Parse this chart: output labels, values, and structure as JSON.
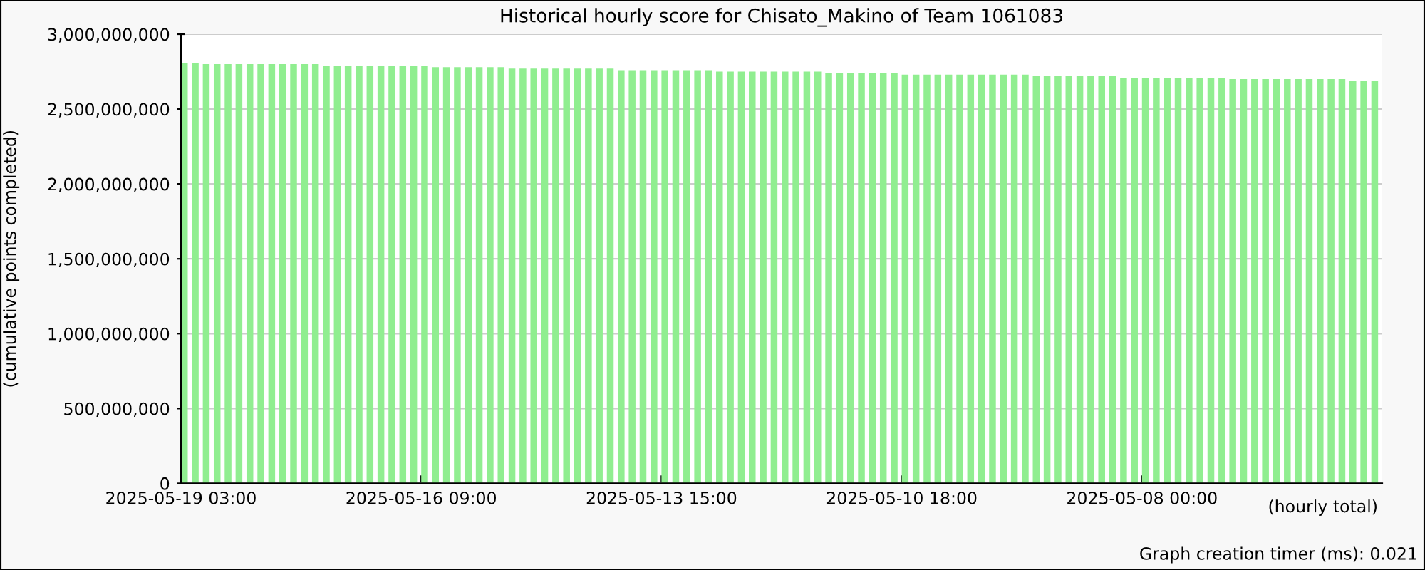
{
  "chart_data": {
    "type": "bar",
    "title": "Historical hourly score for Chisato_Makino of Team 1061083",
    "ylabel": "(cumulative points completed)",
    "annotations": [
      "(hourly total)",
      "Graph creation timer (ms): 0.021"
    ],
    "categories": [
      "2025-05-19 03:00",
      null,
      null,
      null,
      null,
      null,
      null,
      null,
      null,
      null,
      null,
      null,
      null,
      null,
      null,
      null,
      null,
      null,
      null,
      null,
      null,
      null,
      "2025-05-16 09:00",
      null,
      null,
      null,
      null,
      null,
      null,
      null,
      null,
      null,
      null,
      null,
      null,
      null,
      null,
      null,
      null,
      null,
      null,
      null,
      null,
      null,
      "2025-05-13 15:00",
      null,
      null,
      null,
      null,
      null,
      null,
      null,
      null,
      null,
      null,
      null,
      null,
      null,
      null,
      null,
      null,
      null,
      null,
      null,
      null,
      null,
      "2025-05-10 18:00",
      null,
      null,
      null,
      null,
      null,
      null,
      null,
      null,
      null,
      null,
      null,
      null,
      null,
      null,
      null,
      null,
      null,
      null,
      null,
      null,
      null,
      "2025-05-08 00:00",
      null,
      null,
      null,
      null,
      null,
      null,
      null,
      null,
      null,
      null,
      null,
      null,
      null,
      null,
      null,
      null,
      null,
      null,
      null,
      null,
      null
    ],
    "values": [
      2810000000,
      2810000000,
      2800000000,
      2800000000,
      2800000000,
      2800000000,
      2800000000,
      2800000000,
      2800000000,
      2800000000,
      2800000000,
      2800000000,
      2800000000,
      2790000000,
      2790000000,
      2790000000,
      2790000000,
      2790000000,
      2790000000,
      2790000000,
      2790000000,
      2790000000,
      2790000000,
      2780000000,
      2780000000,
      2780000000,
      2780000000,
      2780000000,
      2780000000,
      2780000000,
      2770000000,
      2770000000,
      2770000000,
      2770000000,
      2770000000,
      2770000000,
      2770000000,
      2770000000,
      2770000000,
      2770000000,
      2760000000,
      2760000000,
      2760000000,
      2760000000,
      2760000000,
      2760000000,
      2760000000,
      2760000000,
      2760000000,
      2750000000,
      2750000000,
      2750000000,
      2750000000,
      2750000000,
      2750000000,
      2750000000,
      2750000000,
      2750000000,
      2750000000,
      2740000000,
      2740000000,
      2740000000,
      2740000000,
      2740000000,
      2740000000,
      2740000000,
      2730000000,
      2730000000,
      2730000000,
      2730000000,
      2730000000,
      2730000000,
      2730000000,
      2730000000,
      2730000000,
      2730000000,
      2730000000,
      2730000000,
      2720000000,
      2720000000,
      2720000000,
      2720000000,
      2720000000,
      2720000000,
      2720000000,
      2720000000,
      2710000000,
      2710000000,
      2710000000,
      2710000000,
      2710000000,
      2710000000,
      2710000000,
      2710000000,
      2710000000,
      2710000000,
      2700000000,
      2700000000,
      2700000000,
      2700000000,
      2700000000,
      2700000000,
      2700000000,
      2700000000,
      2700000000,
      2700000000,
      2700000000,
      2690000000,
      2690000000,
      2690000000
    ],
    "color": "#90ee90",
    "ylim": [
      0,
      3000000000
    ],
    "yticks": [
      {
        "value": 0,
        "label": "0"
      },
      {
        "value": 500000000,
        "label": "500,000,000"
      },
      {
        "value": 1000000000,
        "label": "1,000,000,000"
      },
      {
        "value": 1500000000,
        "label": "1,500,000,000"
      },
      {
        "value": 2000000000,
        "label": "2,000,000,000"
      },
      {
        "value": 2500000000,
        "label": "2,500,000,000"
      },
      {
        "value": 3000000000,
        "label": "3,000,000,000"
      }
    ],
    "grid": "y",
    "legend": false
  }
}
